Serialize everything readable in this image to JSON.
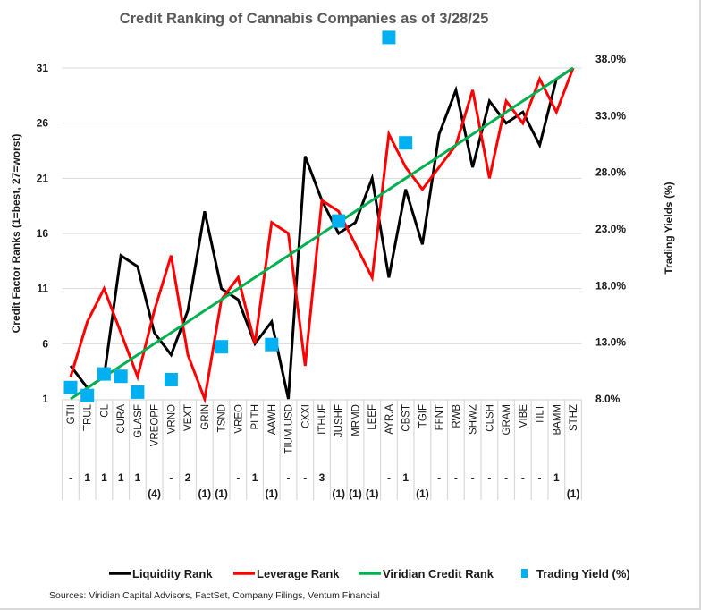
{
  "chart_data": {
    "type": "line",
    "title": "Credit Ranking of Cannabis Companies as of 3/28/25",
    "ylabel": "Credit Factor Ranks (1=best, 27=worst)",
    "y2label": "Trading Yields (%)",
    "ylim": [
      1,
      31
    ],
    "yticks": [
      "1",
      "6",
      "11",
      "16",
      "21",
      "26",
      "31"
    ],
    "y2lim": [
      8,
      38
    ],
    "y2ticks": [
      "8.0%",
      "13.0%",
      "18.0%",
      "23.0%",
      "28.0%",
      "33.0%",
      "38.0%"
    ],
    "grid": true,
    "categories": [
      "GTII",
      "TRUL",
      "CL",
      "CURA",
      "GLASF",
      "VREOPF",
      "VRNO",
      "VEXT",
      "GRIN",
      "TSND",
      "VREO",
      "PLTH",
      "AAWH",
      "TIUM.USD",
      "CXXI",
      "ITHUF",
      "JUSHF",
      "MRMD",
      "LEEF",
      "AYR.A",
      "CBST",
      "TGIF",
      "FFNT",
      "RWB",
      "SHWZ",
      "CLSH",
      "GRAM",
      "VIBE",
      "TILT",
      "BAMM",
      "STHZ"
    ],
    "rank_changes": [
      "-",
      "1",
      "1",
      "1",
      "1",
      "(4)",
      "-",
      "2",
      "(1)",
      "(1)",
      "-",
      "1",
      "(1)",
      "-",
      "-",
      "3",
      "(1)",
      "(1)",
      "(1)",
      "-",
      "1",
      "(1)",
      "-",
      "-",
      "-",
      "-",
      "-",
      "-",
      "-",
      "1",
      "(1)"
    ],
    "series": [
      {
        "name": "Liquidity Rank",
        "color": "#000000",
        "axis": "left",
        "style": "line",
        "values": [
          4,
          2,
          3,
          14,
          13,
          7,
          5,
          9,
          18,
          11,
          10,
          6,
          8,
          1,
          23,
          19,
          16,
          17,
          21,
          12,
          20,
          15,
          25,
          29,
          22,
          28,
          26,
          27,
          24,
          30,
          31
        ]
      },
      {
        "name": "Leverage Rank",
        "color": "#ff0000",
        "axis": "left",
        "style": "line",
        "values": [
          3,
          8,
          11,
          7,
          3,
          9,
          14,
          5,
          1,
          10,
          12,
          6,
          17,
          16,
          4,
          19,
          18,
          15,
          12,
          25,
          22,
          20,
          22,
          24,
          29,
          21,
          28,
          26,
          30,
          27,
          31
        ]
      },
      {
        "name": "Viridian Credit Rank",
        "color": "#00b050",
        "axis": "left",
        "style": "line",
        "values": [
          1,
          2,
          3,
          4,
          5,
          6,
          7,
          8,
          9,
          10,
          11,
          12,
          13,
          14,
          15,
          16,
          17,
          18,
          19,
          20,
          21,
          22,
          23,
          24,
          25,
          26,
          27,
          28,
          29,
          30,
          31
        ]
      },
      {
        "name": "Trading Yield (%)",
        "color": "#00b0f0",
        "axis": "right",
        "style": "marker",
        "values": [
          9.0,
          8.3,
          10.2,
          10.0,
          8.6,
          null,
          9.7,
          null,
          null,
          12.6,
          null,
          null,
          12.8,
          null,
          null,
          null,
          23.7,
          null,
          null,
          39.9,
          30.6,
          null,
          null,
          null,
          null,
          null,
          null,
          null,
          null,
          null,
          null
        ]
      }
    ],
    "legend_position": "bottom",
    "source": "Sources: Viridian Capital Advisors, FactSet, Company Filings, Ventum Financial"
  }
}
